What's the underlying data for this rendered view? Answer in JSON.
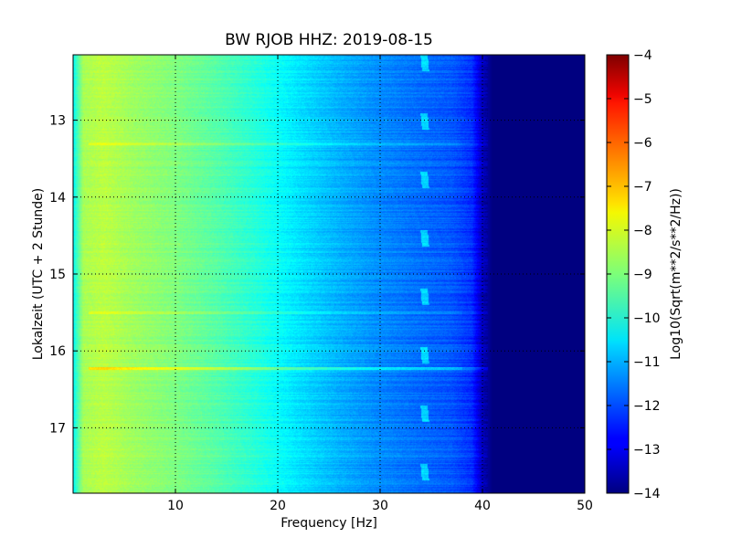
{
  "chart_data": {
    "type": "heatmap",
    "title": "BW RJOB HHZ: 2019-08-15",
    "xlabel": "Frequency [Hz]",
    "ylabel": "Lokalzeit (UTC + 2 Stunde)",
    "xlim": [
      0,
      50
    ],
    "ylim": [
      12.15,
      17.85
    ],
    "y_inverted": true,
    "x_ticks": [
      10,
      20,
      30,
      40,
      50
    ],
    "x_tick_labels": [
      "10",
      "20",
      "30",
      "40",
      "50"
    ],
    "y_ticks": [
      13,
      14,
      15,
      16,
      17
    ],
    "y_tick_labels": [
      "13",
      "14",
      "15",
      "16",
      "17"
    ],
    "grid": true,
    "colorbar": {
      "label": "Log10(Sqrt(m**2/s**2/Hz))",
      "range": [
        -14,
        -4
      ],
      "colormap": "jet",
      "ticks": [
        -4,
        -5,
        -6,
        -7,
        -8,
        -9,
        -10,
        -11,
        -12,
        -13,
        -14
      ],
      "tick_labels": [
        "−4",
        "−5",
        "−6",
        "−7",
        "−8",
        "−9",
        "−10",
        "−11",
        "−12",
        "−13",
        "−14"
      ]
    },
    "spectral_profile": {
      "frequency_hz": [
        0,
        1,
        3,
        6,
        10,
        14,
        18,
        22,
        26,
        30,
        34,
        37,
        39,
        40,
        41,
        50
      ],
      "log_amplitude": [
        -10.3,
        -8.6,
        -8.4,
        -8.7,
        -9.0,
        -9.4,
        -9.9,
        -10.5,
        -11.0,
        -11.4,
        -11.7,
        -11.9,
        -12.3,
        -13.4,
        -14.0,
        -14.0
      ]
    },
    "horizontal_lines": [
      {
        "time": 16.22,
        "delta": 1.0
      },
      {
        "time": 13.3,
        "delta": 0.5
      },
      {
        "time": 15.5,
        "delta": 0.4
      }
    ],
    "drifting_tone": {
      "frequency_hz": [
        34.3,
        34.8
      ],
      "period_hours": 0.76,
      "first_time": 12.15
    }
  }
}
